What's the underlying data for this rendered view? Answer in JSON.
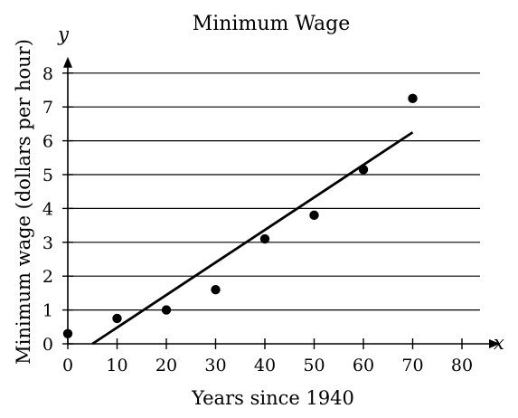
{
  "chart_data": {
    "type": "scatter",
    "title": "Minimum Wage",
    "xlabel": "Years since 1940",
    "ylabel": "Minimum wage (dollars per hour)",
    "x_var": "x",
    "y_var": "y",
    "xlim": [
      0,
      80
    ],
    "ylim": [
      0,
      8
    ],
    "x_ticks": [
      0,
      10,
      20,
      30,
      40,
      50,
      60,
      70,
      80
    ],
    "y_ticks": [
      0,
      1,
      2,
      3,
      4,
      5,
      6,
      7,
      8
    ],
    "grid": "horizontal",
    "points": [
      {
        "x": 0,
        "y": 0.3
      },
      {
        "x": 10,
        "y": 0.75
      },
      {
        "x": 20,
        "y": 1.0
      },
      {
        "x": 30,
        "y": 1.6
      },
      {
        "x": 40,
        "y": 3.1
      },
      {
        "x": 50,
        "y": 3.8
      },
      {
        "x": 60,
        "y": 5.15
      },
      {
        "x": 70,
        "y": 7.25
      }
    ],
    "line_of_best_fit": {
      "start": {
        "x": 5,
        "y": 0
      },
      "end": {
        "x": 70,
        "y": 6.25
      }
    }
  }
}
